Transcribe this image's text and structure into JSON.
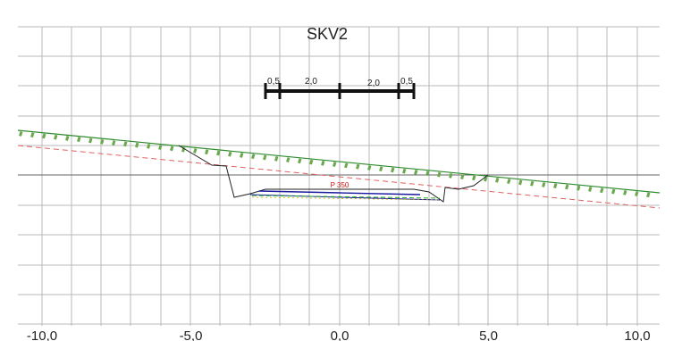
{
  "title": "SKV2",
  "x_axis": {
    "ticks": [
      "-10,0",
      "-5,0",
      "0,0",
      "5,0",
      "10,0"
    ],
    "values": [
      -10,
      -5,
      0,
      5,
      10
    ],
    "range": [
      -10.7,
      10.2
    ]
  },
  "widths": {
    "labels": [
      "0,5",
      "2,0",
      "2,0",
      "0,5"
    ],
    "segments": [
      -2.5,
      -2.0,
      0,
      2.0,
      2.5
    ]
  },
  "profile_label": "P 350",
  "colors": {
    "grid": "#b8b8b8",
    "terrain": "#2e8b2e",
    "hatch": "#6aa84f",
    "reference": "#e06060",
    "road": "#1a1aa0",
    "subgrade": "#22aa22",
    "label": "#d01010"
  }
}
